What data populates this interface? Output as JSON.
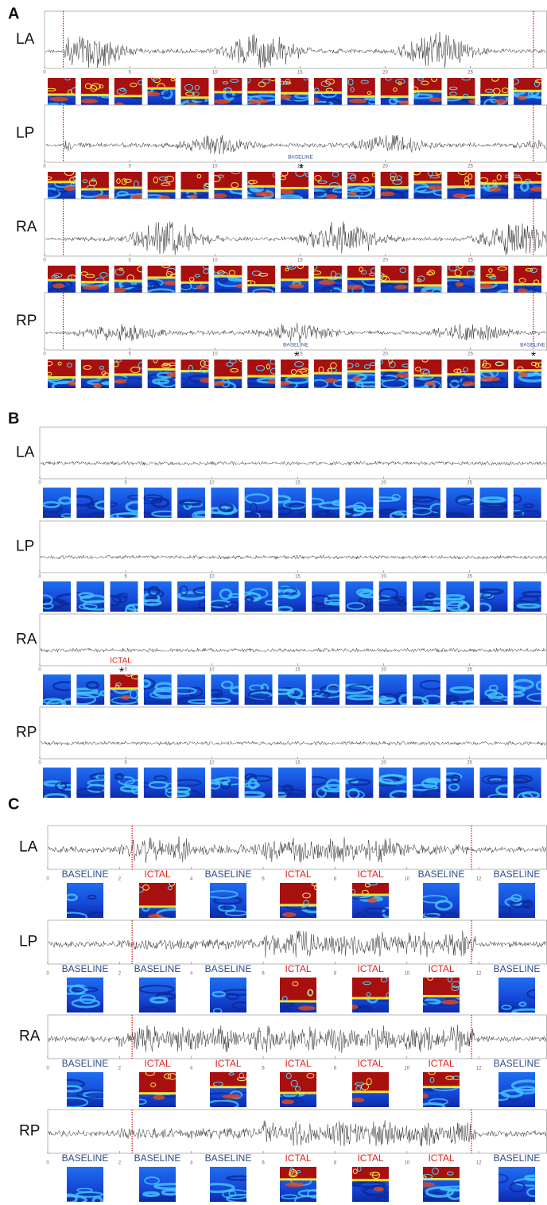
{
  "panels": [
    {
      "label": "A",
      "xlim": [
        0,
        29.5
      ],
      "xticks": [
        0,
        5,
        10,
        15,
        20,
        25
      ],
      "event_lines": [
        1.1,
        28.7
      ],
      "channels": [
        {
          "name": "LA"
        },
        {
          "name": "LP",
          "annotations": [
            {
              "text": "BASELINE",
              "color": "#2b4c8c",
              "mark": "*"
            }
          ]
        },
        {
          "name": "RA"
        },
        {
          "name": "RP",
          "annotations": [
            {
              "text": "BASELINE",
              "color": "#2b4c8c",
              "mark": "*"
            },
            {
              "text": "BASELINE",
              "color": "#2b4c8c",
              "mark": "*"
            }
          ]
        }
      ]
    },
    {
      "label": "B",
      "xlim": [
        0,
        29.5
      ],
      "xticks": [
        0,
        5,
        10,
        15,
        20,
        25
      ],
      "channels": [
        {
          "name": "LA"
        },
        {
          "name": "LP"
        },
        {
          "name": "RA",
          "annotations": [
            {
              "text": "ICTAL",
              "color": "#e3211c",
              "mark": "*"
            }
          ]
        },
        {
          "name": "RP"
        }
      ]
    },
    {
      "label": "C",
      "xlim": [
        0,
        13.9
      ],
      "xticks": [
        0,
        2,
        4,
        6,
        8,
        10,
        12
      ],
      "event_lines": [
        2.35,
        11.8
      ],
      "channels": [
        {
          "name": "LA",
          "states": [
            {
              "text": "BASELINE",
              "color": "#2b4c8c"
            },
            {
              "text": "ICTAL",
              "color": "#e3211c"
            },
            {
              "text": "BASELINE",
              "color": "#2b4c8c"
            },
            {
              "text": "ICTAL",
              "color": "#e3211c"
            },
            {
              "text": "ICTAL",
              "color": "#e3211c"
            },
            {
              "text": "BASELINE",
              "color": "#2b4c8c"
            },
            {
              "text": "BASELINE",
              "color": "#2b4c8c"
            }
          ]
        },
        {
          "name": "LP",
          "states": [
            {
              "text": "BASELINE",
              "color": "#2b4c8c"
            },
            {
              "text": "BASELINE",
              "color": "#2b4c8c"
            },
            {
              "text": "BASELINE",
              "color": "#2b4c8c"
            },
            {
              "text": "ICTAL",
              "color": "#e3211c"
            },
            {
              "text": "ICTAL",
              "color": "#e3211c"
            },
            {
              "text": "ICTAL",
              "color": "#e3211c"
            },
            {
              "text": "BASELINE",
              "color": "#2b4c8c"
            }
          ]
        },
        {
          "name": "RA",
          "states": [
            {
              "text": "BASELINE",
              "color": "#2b4c8c"
            },
            {
              "text": "ICTAL",
              "color": "#e3211c"
            },
            {
              "text": "ICTAL",
              "color": "#e3211c"
            },
            {
              "text": "ICTAL",
              "color": "#e3211c"
            },
            {
              "text": "ICTAL",
              "color": "#e3211c"
            },
            {
              "text": "ICTAL",
              "color": "#e3211c"
            },
            {
              "text": "BASELINE",
              "color": "#2b4c8c"
            }
          ]
        },
        {
          "name": "RP",
          "states": [
            {
              "text": "BASELINE",
              "color": "#2b4c8c"
            },
            {
              "text": "BASELINE",
              "color": "#2b4c8c"
            },
            {
              "text": "BASELINE",
              "color": "#2b4c8c"
            },
            {
              "text": "ICTAL",
              "color": "#e3211c"
            },
            {
              "text": "ICTAL",
              "color": "#e3211c"
            },
            {
              "text": "ICTAL",
              "color": "#e3211c"
            },
            {
              "text": "BASELINE",
              "color": "#2b4c8c"
            }
          ]
        }
      ]
    }
  ]
}
